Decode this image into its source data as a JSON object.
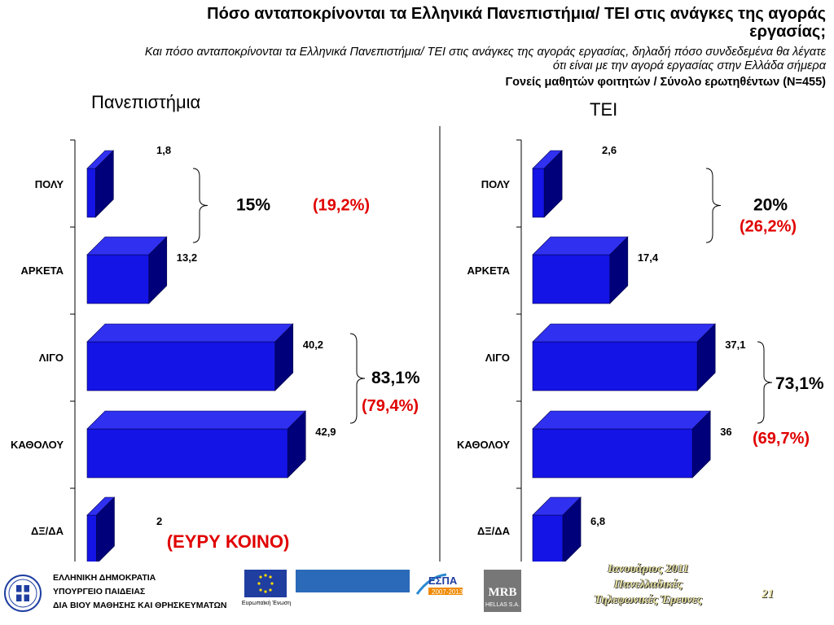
{
  "header": {
    "title_line1": "Πόσο ανταποκρίνονται τα Ελληνικά Πανεπιστήμια/ ΤΕΙ στις ανάγκες της αγοράς",
    "title_line2": "εργασίας;",
    "subtitle_line1": "Και πόσο ανταποκρίνονται τα Ελληνικά Πανεπιστήμια/ ΤΕΙ στις ανάγκες της αγοράς εργασίας, δηλαδή  πόσο συνδεδεμένα θα λέγατε",
    "subtitle_line2": "ότι είναι με την αγορά εργασίας στην Ελλάδα σήμερα",
    "sample": "Γονείς μαθητών φοιτητών / Σύνολο ερωτηθέντων (Ν=455)"
  },
  "chart_data": [
    {
      "type": "bar",
      "title": "Πανεπιστήμια",
      "orientation": "horizontal",
      "categories": [
        "ΠΟΛΥ",
        "ΑΡΚΕΤΑ",
        "ΛΙΓΟ",
        "ΚΑΘΟΛΟΥ",
        "ΔΞ/ΔΑ"
      ],
      "values": [
        1.8,
        13.2,
        40.2,
        42.9,
        2
      ],
      "value_labels": [
        "1,8",
        "13,2",
        "40,2",
        "42,9",
        "2"
      ],
      "color": "#1414e6",
      "annotations": [
        {
          "text": "15%",
          "compare": "(19,2%)"
        },
        {
          "text": "83,1%",
          "compare": "(79,4%)"
        }
      ]
    },
    {
      "type": "bar",
      "title": "ΤΕΙ",
      "orientation": "horizontal",
      "categories": [
        "ΠΟΛΥ",
        "ΑΡΚΕΤΑ",
        "ΛΙΓΟ",
        "ΚΑΘΟΛΟΥ",
        "ΔΞ/ΔΑ"
      ],
      "values": [
        2.6,
        17.4,
        37.1,
        36,
        6.8
      ],
      "value_labels": [
        "2,6",
        "17,4",
        "37,1",
        "36",
        "6,8"
      ],
      "color": "#1414e6",
      "annotations": [
        {
          "text": "20%",
          "compare": "(26,2%)"
        },
        {
          "text": "73,1%",
          "compare": "(69,7%)"
        }
      ]
    }
  ],
  "eu_note": "(ΕΥΡΥ ΚΟΙΝΟ)",
  "footer": {
    "ministry_line1": "ΕΛΛΗΝΙΚΗ ΔΗΜΟΚΡΑΤΙΑ",
    "ministry_line2": "ΥΠΟΥΡΓΕΙΟ ΠΑΙΔΕΙΑΣ",
    "ministry_line3": "ΔΙΑ ΒΙΟΥ ΜΑΘΗΣΗΣ ΚΑΙ ΘΡΗΣΚΕΥΜΑΤΩΝ",
    "eu_label": "Ευρωπαϊκή Ένωση",
    "espa": "ΕΣΠΑ",
    "espa_years": "2007-2013",
    "mrb": "MRB",
    "mrb_sub": "HELLAS S.A.",
    "survey_line1": "Ιανουάριος 2011",
    "survey_line2": "Πανελλαδικές",
    "survey_line3": "Τηλεφωνικές Έρευνες",
    "page_number": "21"
  },
  "colors": {
    "bar_front": "#1414e6",
    "bar_top": "#3030f0",
    "bar_side": "#00007a",
    "annotation_red": "#e00000"
  }
}
